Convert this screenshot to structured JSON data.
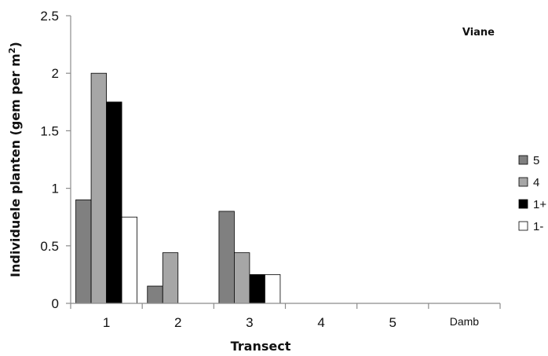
{
  "chart_data": {
    "type": "bar",
    "annotation": "Viane",
    "xlabel": "Transect",
    "ylabel_main": "Individuele planten (gem per m",
    "ylabel_sup": "2",
    "ylabel_end": ")",
    "categories": [
      "1",
      "2",
      "3",
      "4",
      "5",
      "Damb"
    ],
    "ylim": [
      0,
      2.5
    ],
    "yticks": [
      "0",
      "0.5",
      "1",
      "1.5",
      "2",
      "2.5"
    ],
    "ytick_values": [
      0,
      0.5,
      1,
      1.5,
      2,
      2.5
    ],
    "grid": false,
    "legend_position": "right",
    "series": [
      {
        "name": "5",
        "color": "#808080",
        "values": [
          0.9,
          0.15,
          0.8,
          0,
          0,
          0
        ]
      },
      {
        "name": "4",
        "color": "#a6a6a6",
        "values": [
          2.0,
          0.44,
          0.44,
          0,
          0,
          0
        ]
      },
      {
        "name": "1+",
        "color": "#000000",
        "values": [
          1.75,
          0,
          0.25,
          0,
          0,
          0
        ]
      },
      {
        "name": "1-",
        "color": "#ffffff",
        "values": [
          0.75,
          0,
          0.25,
          0,
          0,
          0
        ]
      }
    ]
  }
}
